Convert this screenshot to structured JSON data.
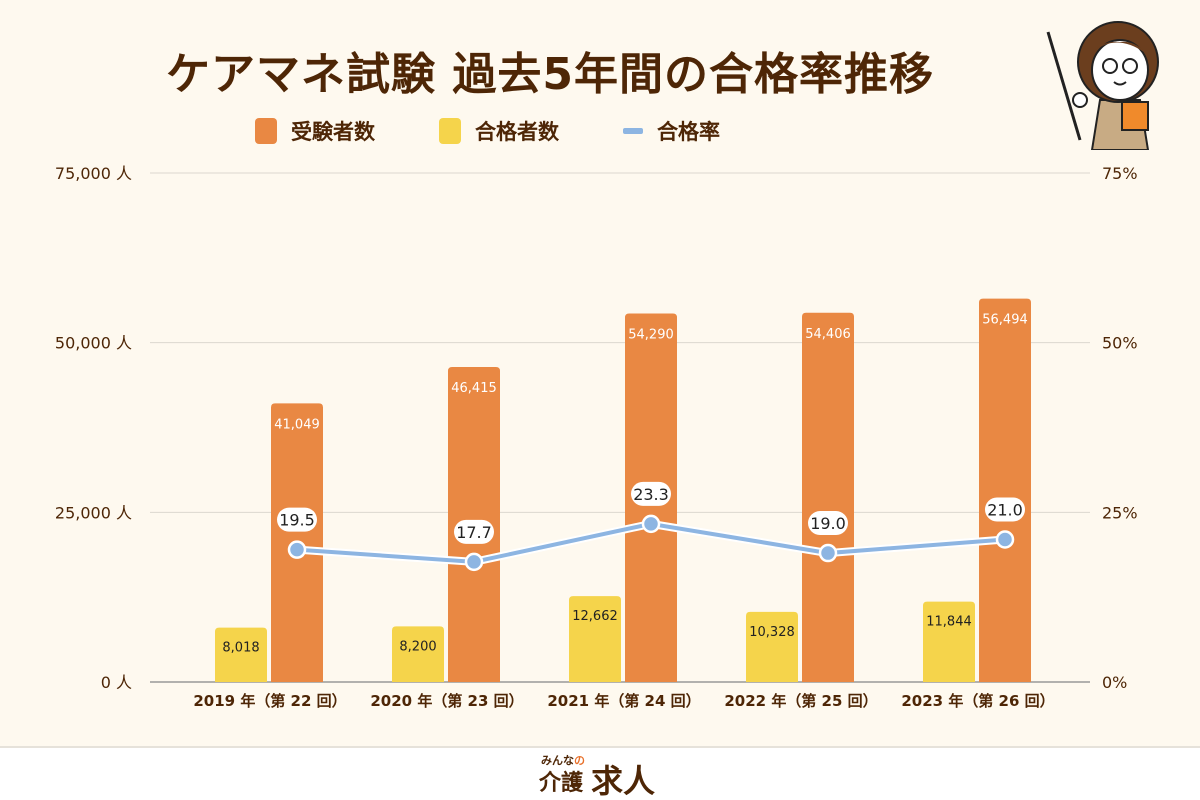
{
  "title": "ケアマネ試験 過去5年間の合格率推移",
  "logo": {
    "small": "みんなの",
    "main1": "介護",
    "main2": "求人"
  },
  "chart_data": {
    "type": "bar",
    "title": "ケアマネ試験 過去5年間の合格率推移",
    "categories": [
      "2019 年（第 22 回）",
      "2020 年（第 23 回）",
      "2021 年（第 24 回）",
      "2022 年（第 25 回）",
      "2023 年（第 26 回）"
    ],
    "series": [
      {
        "name": "受験者数",
        "type": "bar",
        "color": "#e98843",
        "values": [
          41049,
          46415,
          54290,
          54406,
          56494
        ],
        "labels": [
          "41,049",
          "46,415",
          "54,290",
          "54,406",
          "56,494"
        ]
      },
      {
        "name": "合格者数",
        "type": "bar",
        "color": "#f5d44b",
        "values": [
          8018,
          8200,
          12662,
          10328,
          11844
        ],
        "labels": [
          "8,018",
          "8,200",
          "12,662",
          "10,328",
          "11,844"
        ]
      },
      {
        "name": "合格率",
        "type": "line",
        "color": "#8db5e2",
        "axis": "right",
        "values": [
          19.5,
          17.7,
          23.3,
          19.0,
          21.0
        ],
        "labels": [
          "19.5",
          "17.7",
          "23.3",
          "19.0",
          "21.0"
        ]
      }
    ],
    "yleft": {
      "ylim": [
        0,
        75000
      ],
      "ticks": [
        "0 人",
        "25,000 人",
        "50,000 人",
        "75,000 人"
      ]
    },
    "yright": {
      "ylim": [
        0,
        75
      ],
      "ticks": [
        "0%",
        "25%",
        "50%",
        "75%"
      ]
    },
    "grid": true,
    "legend": "top"
  }
}
